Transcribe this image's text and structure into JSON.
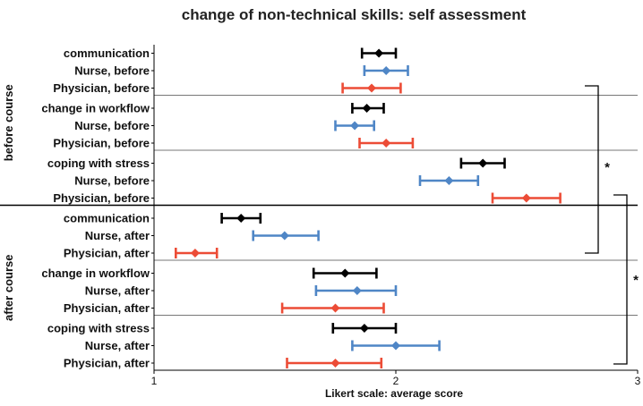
{
  "chart_data": {
    "type": "scatter",
    "title": "change of non-technical skills: self assessment",
    "xlabel": "Likert scale: average score",
    "xlim": [
      1,
      3
    ],
    "xticks": [
      1,
      2,
      3
    ],
    "colors": {
      "all": "#000000",
      "nurse": "#4f86c6",
      "physician": "#ec4c36"
    },
    "groups": [
      {
        "label": "before course",
        "panels": [
          {
            "rows": [
              {
                "label": "communication",
                "series": "all",
                "mean": 1.93,
                "low": 1.86,
                "high": 2.0
              },
              {
                "label": "Nurse, before",
                "series": "nurse",
                "mean": 1.96,
                "low": 1.87,
                "high": 2.05
              },
              {
                "label": "Physician, before",
                "series": "physician",
                "mean": 1.9,
                "low": 1.78,
                "high": 2.02
              }
            ]
          },
          {
            "rows": [
              {
                "label": "change in workflow",
                "series": "all",
                "mean": 1.88,
                "low": 1.82,
                "high": 1.95
              },
              {
                "label": "Nurse, before",
                "series": "nurse",
                "mean": 1.83,
                "low": 1.75,
                "high": 1.91
              },
              {
                "label": "Physician, before",
                "series": "physician",
                "mean": 1.96,
                "low": 1.85,
                "high": 2.07
              }
            ]
          },
          {
            "rows": [
              {
                "label": "coping with stress",
                "series": "all",
                "mean": 2.36,
                "low": 2.27,
                "high": 2.45
              },
              {
                "label": "Nurse, before",
                "series": "nurse",
                "mean": 2.22,
                "low": 2.1,
                "high": 2.34
              },
              {
                "label": "Physician, before",
                "series": "physician",
                "mean": 2.54,
                "low": 2.4,
                "high": 2.68
              }
            ]
          }
        ]
      },
      {
        "label": "after course",
        "panels": [
          {
            "rows": [
              {
                "label": "communication",
                "series": "all",
                "mean": 1.36,
                "low": 1.28,
                "high": 1.44
              },
              {
                "label": "Nurse, after",
                "series": "nurse",
                "mean": 1.54,
                "low": 1.41,
                "high": 1.68
              },
              {
                "label": "Physician, after",
                "series": "physician",
                "mean": 1.17,
                "low": 1.09,
                "high": 1.26
              }
            ]
          },
          {
            "rows": [
              {
                "label": "change in workflow",
                "series": "all",
                "mean": 1.79,
                "low": 1.66,
                "high": 1.92
              },
              {
                "label": "Nurse, after",
                "series": "nurse",
                "mean": 1.84,
                "low": 1.67,
                "high": 2.0
              },
              {
                "label": "Physician, after",
                "series": "physician",
                "mean": 1.75,
                "low": 1.53,
                "high": 1.95
              }
            ]
          },
          {
            "rows": [
              {
                "label": "coping with stress",
                "series": "all",
                "mean": 1.87,
                "low": 1.74,
                "high": 2.0
              },
              {
                "label": "Nurse, after",
                "series": "nurse",
                "mean": 2.0,
                "low": 1.82,
                "high": 2.18
              },
              {
                "label": "Physician, after",
                "series": "physician",
                "mean": 1.75,
                "low": 1.55,
                "high": 1.94
              }
            ]
          }
        ]
      }
    ],
    "annotations": [
      {
        "text": "*",
        "from_group": "before course",
        "from_panel": 0,
        "to_group": "after course",
        "to_panel": 0,
        "kind": "significance"
      },
      {
        "text": "*",
        "from_group": "before course",
        "from_panel": 2,
        "to_group": "after course",
        "to_panel": 2,
        "kind": "significance"
      }
    ],
    "grid": false,
    "legend": "none"
  }
}
